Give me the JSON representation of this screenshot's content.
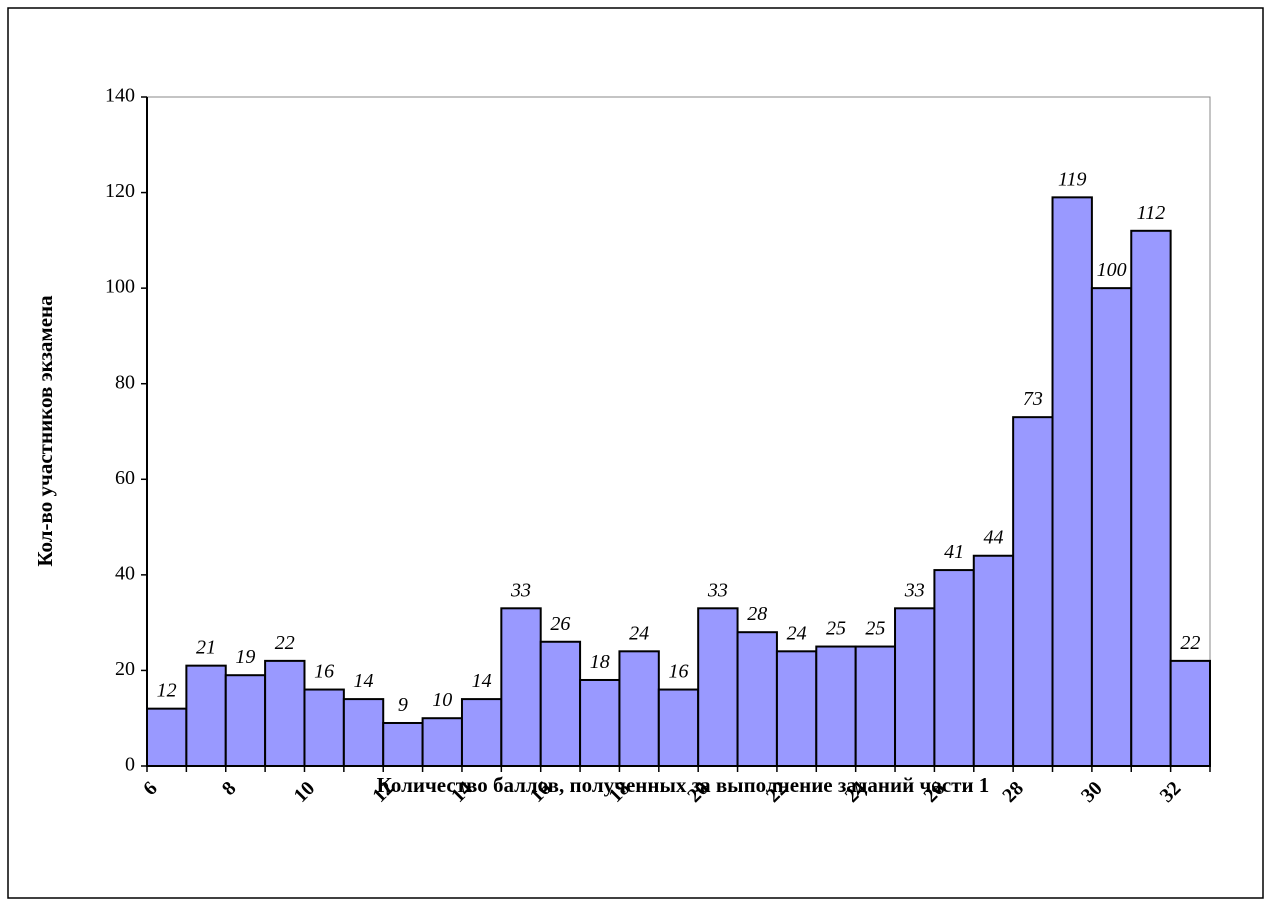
{
  "chart_data": {
    "type": "bar",
    "x_label": "Количество баллов, полученных за выполнение заданий части 1",
    "y_label": "Кол-во участников экзамена",
    "categories": [
      6,
      null,
      8,
      null,
      10,
      null,
      12,
      null,
      14,
      null,
      16,
      null,
      18,
      null,
      20,
      null,
      22,
      null,
      24,
      null,
      26,
      null,
      28,
      null,
      30,
      null,
      32
    ],
    "values": [
      12,
      21,
      19,
      22,
      16,
      14,
      9,
      10,
      14,
      33,
      26,
      18,
      24,
      16,
      33,
      28,
      24,
      25,
      25,
      33,
      41,
      44,
      73,
      119,
      100,
      112,
      22
    ],
    "color": "#9999ff",
    "ylim": [
      0,
      140
    ],
    "yticks": [
      0,
      20,
      40,
      60,
      80,
      100,
      120,
      140
    ]
  }
}
